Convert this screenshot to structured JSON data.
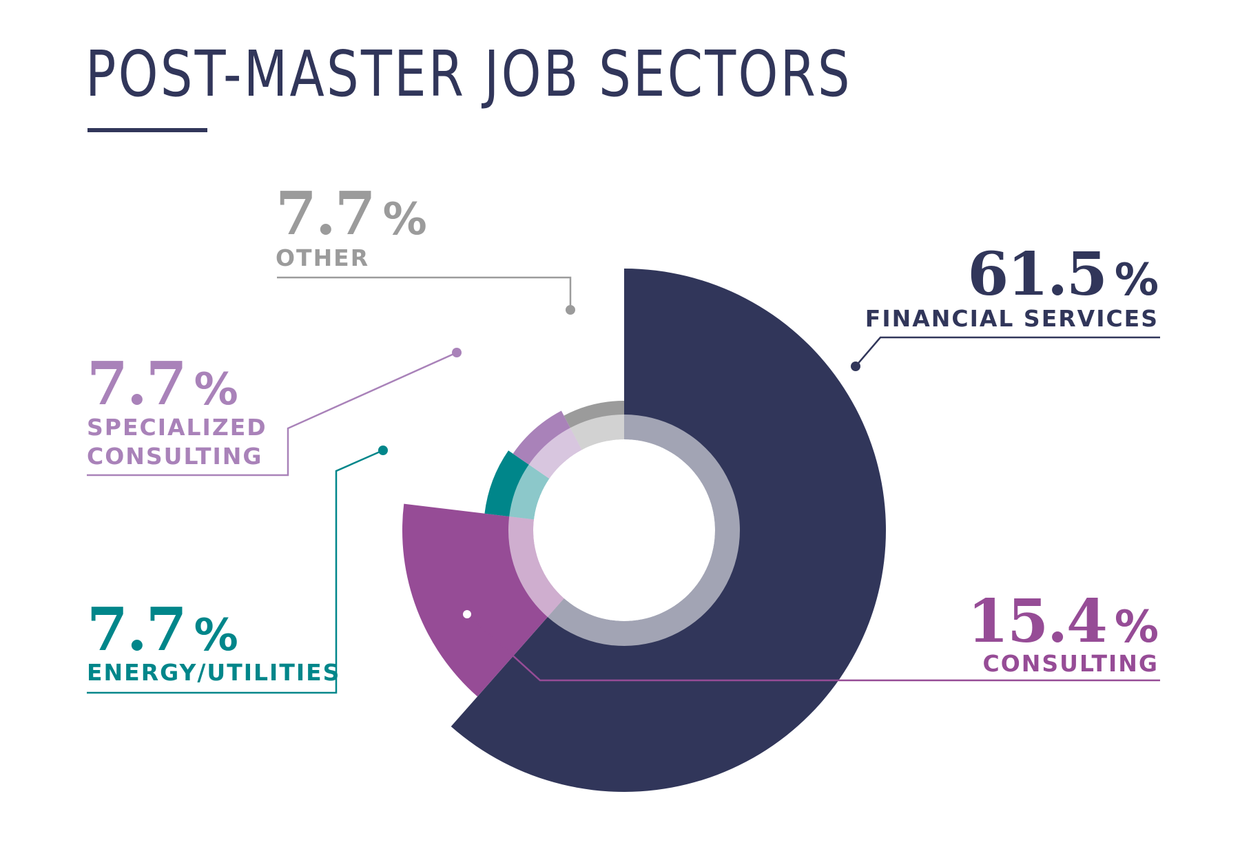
{
  "title": "POST-MASTER JOB SECTORS",
  "colors": {
    "title": "#31365a",
    "financial": "#31365a",
    "consulting": "#964c96",
    "energy": "#00868a",
    "specialized": "#a982b9",
    "other": "#9b9b9b"
  },
  "chart_data": {
    "type": "pie",
    "title": "POST-MASTER JOB SECTORS",
    "series": [
      {
        "values": [
          {
            "label": "FINANCIAL SERVICES",
            "value": 61.5,
            "display": "61.5",
            "color": "#31365a"
          },
          {
            "label": "CONSULTING",
            "value": 15.4,
            "display": "15.4",
            "color": "#964c96"
          },
          {
            "label": "ENERGY/UTILITIES",
            "value": 7.7,
            "display": "7.7",
            "color": "#00868a"
          },
          {
            "label": "SPECIALIZED CONSULTING",
            "value": 7.7,
            "display": "7.7",
            "color": "#a982b9"
          },
          {
            "label": "OTHER",
            "value": 7.7,
            "display": "7.7",
            "color": "#9b9b9b"
          }
        ]
      }
    ],
    "percent_sign": "%",
    "start_angle": "12 o'clock, clockwise",
    "variable_radius": true,
    "legend": "none (callout labels)"
  }
}
